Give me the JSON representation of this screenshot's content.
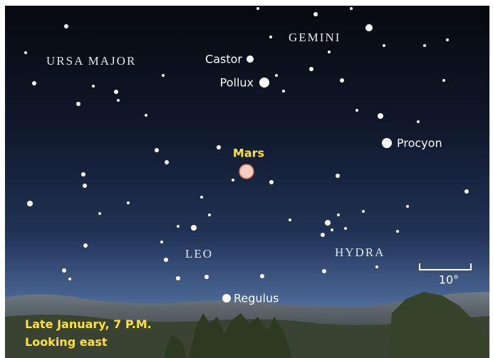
{
  "constellations": [
    "GEMINI",
    "URSA MAJOR",
    "LEO",
    "HYDRA"
  ],
  "stars": [
    "Castor",
    "Pollux",
    "Procyon",
    "Regulus"
  ],
  "planet": "Mars",
  "scale": "10°",
  "caption": [
    "Late January, 7 P.M.",
    "Looking east"
  ]
}
